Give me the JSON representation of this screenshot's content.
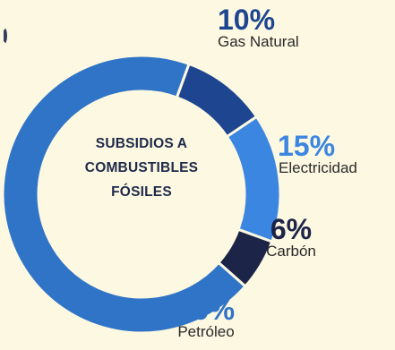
{
  "chart_data": {
    "type": "pie",
    "title": "SUBSIDIOS A COMBUSTIBLES FÓSILES",
    "categories": [
      "Gas Natural",
      "Electricidad",
      "Carbón",
      "Petróleo"
    ],
    "values": [
      10,
      15,
      6,
      69
    ],
    "value_labels": [
      "10%",
      "15%",
      "6%",
      "69%"
    ],
    "colors": [
      "#1e4590",
      "#3b86e0",
      "#1c2448",
      "#2f74c6"
    ],
    "legend": "none"
  }
}
